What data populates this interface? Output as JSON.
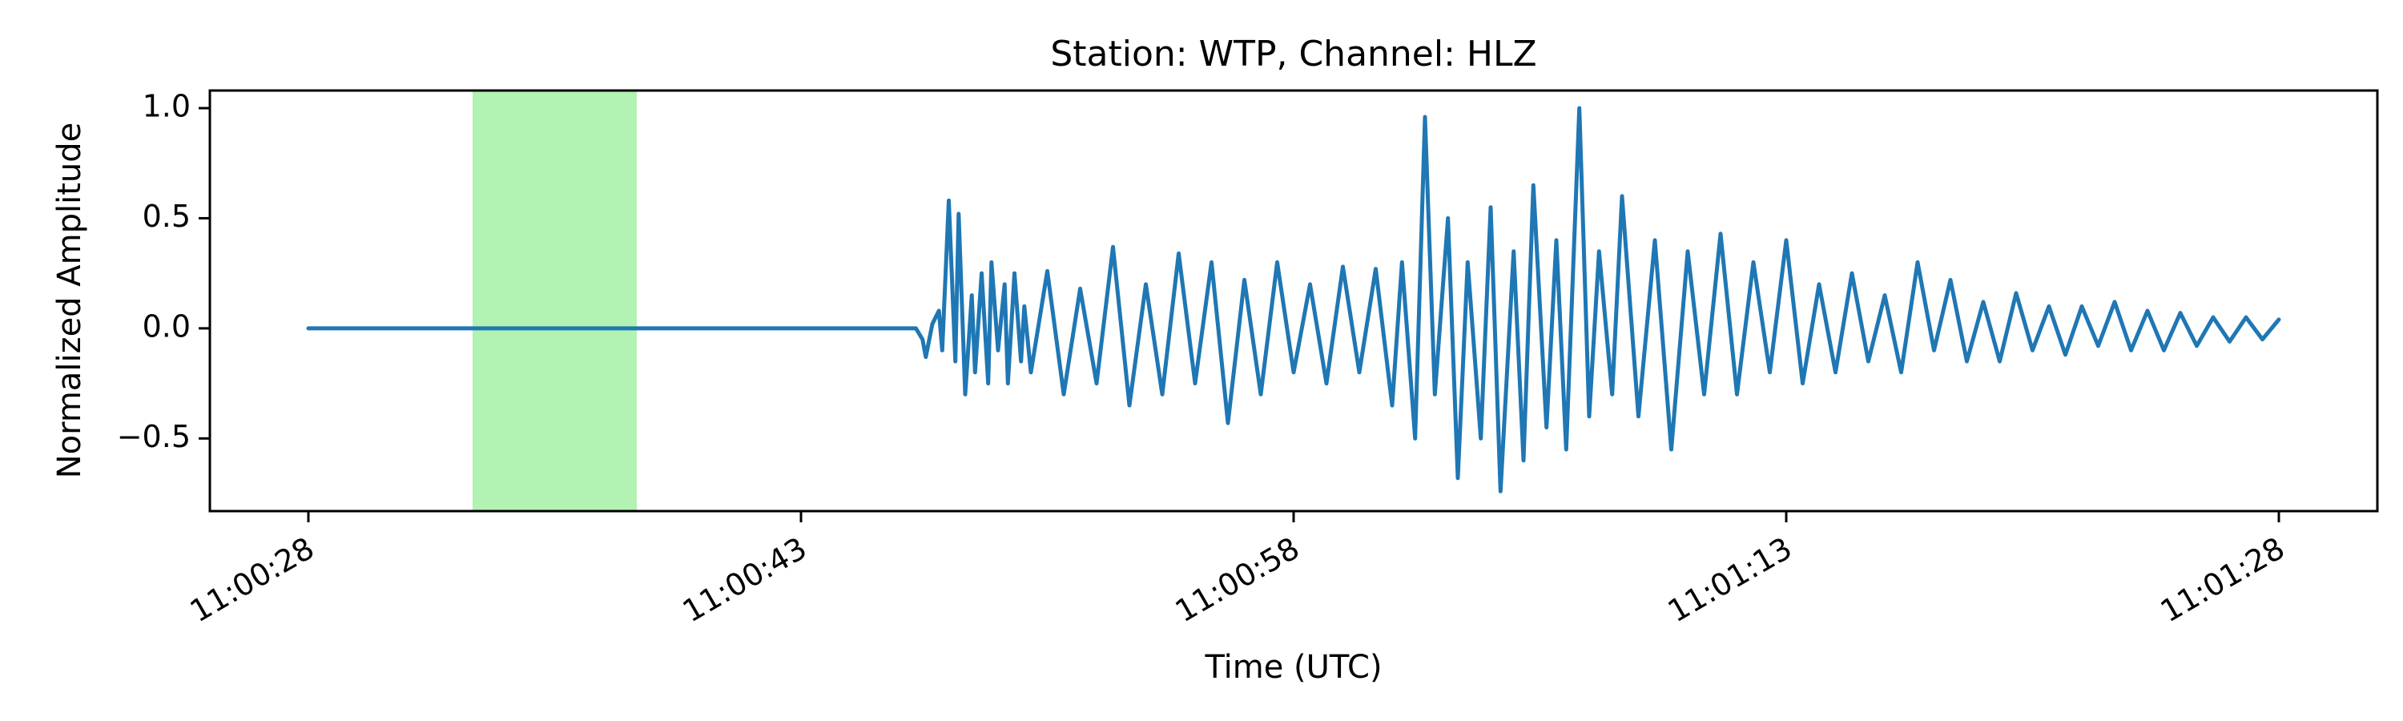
{
  "chart_data": {
    "type": "line",
    "title": "Station: WTP, Channel: HLZ",
    "xlabel": "Time (UTC)",
    "ylabel": "Normalized Amplitude",
    "x_unit": "seconds",
    "xlim": [
      "11:00:25",
      "11:01:31"
    ],
    "ylim": [
      -0.83,
      1.08
    ],
    "xticks": [
      "11:00:28",
      "11:00:43",
      "11:00:58",
      "11:01:13",
      "11:01:28"
    ],
    "yticks": [
      -0.5,
      0.0,
      0.5,
      1.0
    ],
    "ytick_labels": [
      "−0.5",
      "0.0",
      "0.5",
      "1.0"
    ],
    "grid": false,
    "highlight_window": {
      "start": "11:00:33",
      "end": "11:00:38",
      "color": "#b2f2b2"
    },
    "series": [
      {
        "color": "#1f77b4",
        "x": [
          "11:00:28.0",
          "11:00:46.5",
          "11:00:46.7",
          "11:00:46.8",
          "11:00:47.0",
          "11:00:47.2",
          "11:00:47.3",
          "11:00:47.5",
          "11:00:47.7",
          "11:00:47.8",
          "11:00:48.0",
          "11:00:48.2",
          "11:00:48.3",
          "11:00:48.5",
          "11:00:48.7",
          "11:00:48.8",
          "11:00:49.0",
          "11:00:49.2",
          "11:00:49.3",
          "11:00:49.5",
          "11:00:49.7",
          "11:00:49.8",
          "11:00:50.0",
          "11:00:50.5",
          "11:00:51.0",
          "11:00:51.5",
          "11:00:52.0",
          "11:00:52.5",
          "11:00:53.0",
          "11:00:53.5",
          "11:00:54.0",
          "11:00:54.5",
          "11:00:55.0",
          "11:00:55.5",
          "11:00:56.0",
          "11:00:56.5",
          "11:00:57.0",
          "11:00:57.5",
          "11:00:58.0",
          "11:00:58.5",
          "11:00:59.0",
          "11:00:59.5",
          "11:01:00.0",
          "11:01:00.5",
          "11:01:01.0",
          "11:01:01.3",
          "11:01:01.7",
          "11:01:02.0",
          "11:01:02.3",
          "11:01:02.7",
          "11:01:03.0",
          "11:01:03.3",
          "11:01:03.7",
          "11:01:04.0",
          "11:01:04.3",
          "11:01:04.7",
          "11:01:05.0",
          "11:01:05.3",
          "11:01:05.7",
          "11:01:06.0",
          "11:01:06.3",
          "11:01:06.7",
          "11:01:07.0",
          "11:01:07.3",
          "11:01:07.7",
          "11:01:08.0",
          "11:01:08.5",
          "11:01:09.0",
          "11:01:09.5",
          "11:01:10.0",
          "11:01:10.5",
          "11:01:11.0",
          "11:01:11.5",
          "11:01:12.0",
          "11:01:12.5",
          "11:01:13.0",
          "11:01:13.5",
          "11:01:14.0",
          "11:01:14.5",
          "11:01:15.0",
          "11:01:15.5",
          "11:01:16.0",
          "11:01:16.5",
          "11:01:17.0",
          "11:01:17.5",
          "11:01:18.0",
          "11:01:18.5",
          "11:01:19.0",
          "11:01:19.5",
          "11:01:20.0",
          "11:01:20.5",
          "11:01:21.0",
          "11:01:21.5",
          "11:01:22.0",
          "11:01:22.5",
          "11:01:23.0",
          "11:01:23.5",
          "11:01:24.0",
          "11:01:24.5",
          "11:01:25.0",
          "11:01:25.5",
          "11:01:26.0",
          "11:01:26.5",
          "11:01:27.0",
          "11:01:27.5",
          "11:01:28.0"
        ],
        "y": [
          0,
          0,
          -0.05,
          -0.13,
          0.02,
          0.08,
          -0.1,
          0.58,
          -0.15,
          0.52,
          -0.3,
          0.15,
          -0.2,
          0.25,
          -0.25,
          0.3,
          -0.1,
          0.2,
          -0.25,
          0.25,
          -0.15,
          0.1,
          -0.2,
          0.26,
          -0.3,
          0.18,
          -0.25,
          0.37,
          -0.35,
          0.2,
          -0.3,
          0.34,
          -0.25,
          0.3,
          -0.43,
          0.22,
          -0.3,
          0.3,
          -0.2,
          0.2,
          -0.25,
          0.28,
          -0.2,
          0.27,
          -0.35,
          0.3,
          -0.5,
          0.96,
          -0.3,
          0.5,
          -0.68,
          0.3,
          -0.5,
          0.55,
          -0.74,
          0.35,
          -0.6,
          0.65,
          -0.45,
          0.4,
          -0.55,
          1.0,
          -0.4,
          0.35,
          -0.3,
          0.6,
          -0.4,
          0.4,
          -0.55,
          0.35,
          -0.3,
          0.43,
          -0.3,
          0.3,
          -0.2,
          0.4,
          -0.25,
          0.2,
          -0.2,
          0.25,
          -0.15,
          0.15,
          -0.2,
          0.3,
          -0.1,
          0.22,
          -0.15,
          0.12,
          -0.15,
          0.16,
          -0.1,
          0.1,
          -0.12,
          0.1,
          -0.08,
          0.12,
          -0.1,
          0.08,
          -0.1,
          0.07,
          -0.08,
          0.05,
          -0.06,
          0.05,
          -0.05,
          0.04
        ]
      }
    ]
  }
}
